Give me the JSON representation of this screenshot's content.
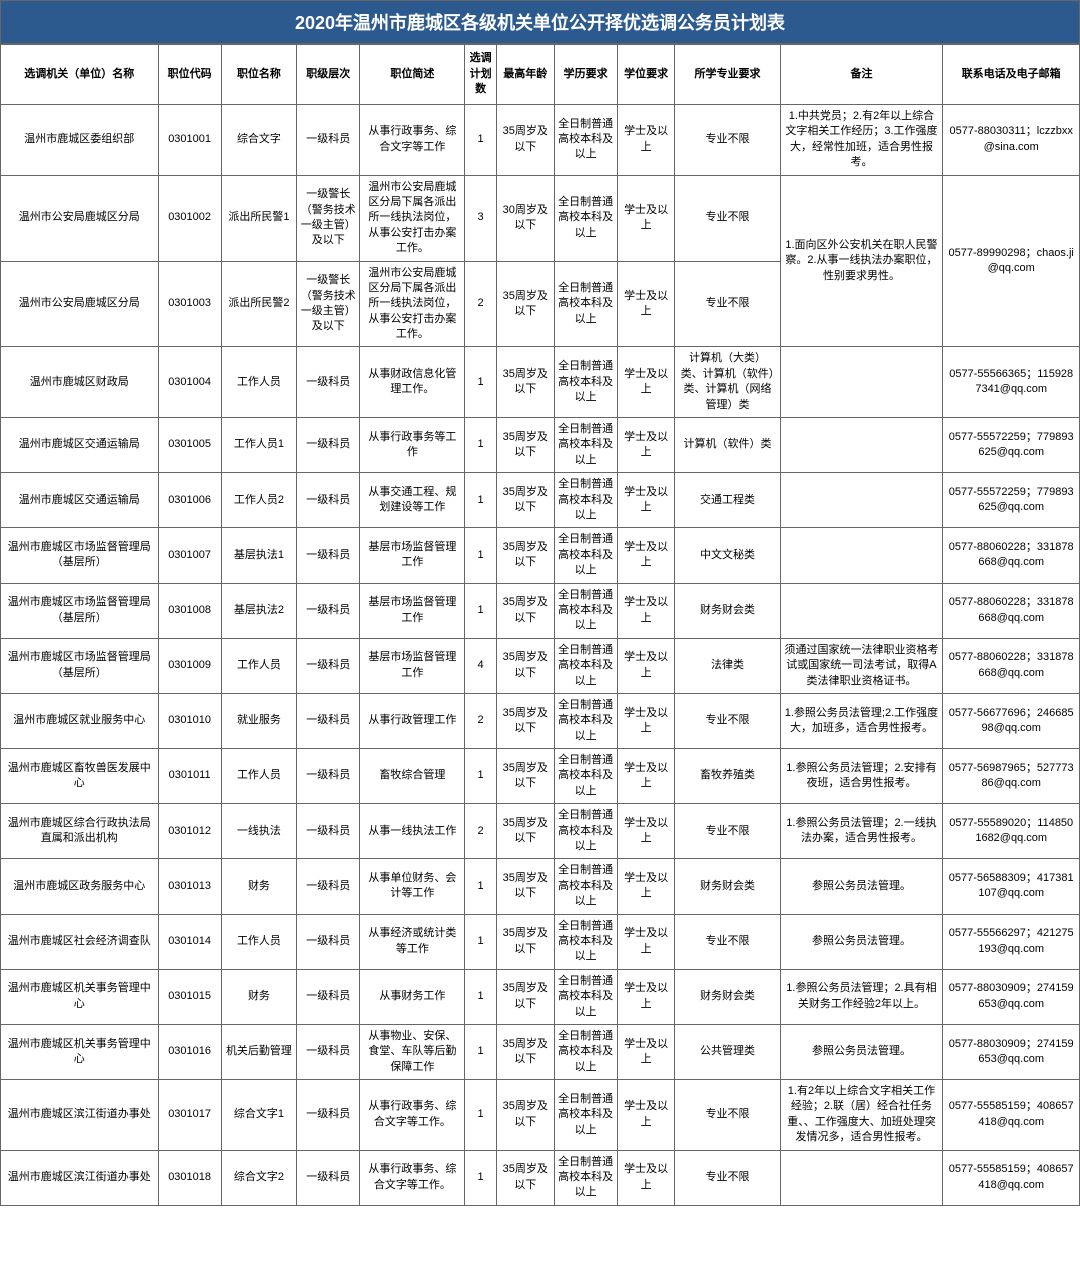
{
  "title": "2020年温州市鹿城区各级机关单位公开择优选调公务员计划表",
  "headers": {
    "unit": "选调机关（单位）名称",
    "code": "职位代码",
    "position": "职位名称",
    "level": "职级层次",
    "desc": "职位简述",
    "plan": "选调计划数",
    "age": "最高年龄",
    "edu": "学历要求",
    "degree": "学位要求",
    "major": "所学专业要求",
    "note": "备注",
    "contact": "联系电话及电子邮箱"
  },
  "merged_note_2_3": "1.面向区外公安机关在职人民警察。2.从事一线执法办案职位，性别要求男性。",
  "merged_contact_2_3": "0577-89990298；chaos.ji@qq.com",
  "rows": [
    {
      "unit": "温州市鹿城区委组织部",
      "code": "0301001",
      "position": "综合文字",
      "level": "一级科员",
      "desc": "从事行政事务、综合文字等工作",
      "plan": "1",
      "age": "35周岁及以下",
      "edu": "全日制普通高校本科及以上",
      "degree": "学士及以上",
      "major": "专业不限",
      "note": "1.中共党员；2.有2年以上综合文字相关工作经历；3.工作强度大，经常性加班，适合男性报考。",
      "contact": "0577-88030311；lczzbxx@sina.com"
    },
    {
      "unit": "温州市公安局鹿城区分局",
      "code": "0301002",
      "position": "派出所民警1",
      "level": "一级警长（警务技术一级主管）及以下",
      "desc": "温州市公安局鹿城区分局下属各派出所一线执法岗位，从事公安打击办案工作。",
      "plan": "3",
      "age": "30周岁及以下",
      "edu": "全日制普通高校本科及以上",
      "degree": "学士及以上",
      "major": "专业不限"
    },
    {
      "unit": "温州市公安局鹿城区分局",
      "code": "0301003",
      "position": "派出所民警2",
      "level": "一级警长（警务技术一级主管）及以下",
      "desc": "温州市公安局鹿城区分局下属各派出所一线执法岗位，从事公安打击办案工作。",
      "plan": "2",
      "age": "35周岁及以下",
      "edu": "全日制普通高校本科及以上",
      "degree": "学士及以上",
      "major": "专业不限"
    },
    {
      "unit": "温州市鹿城区财政局",
      "code": "0301004",
      "position": "工作人员",
      "level": "一级科员",
      "desc": "从事财政信息化管理工作。",
      "plan": "1",
      "age": "35周岁及以下",
      "edu": "全日制普通高校本科及以上",
      "degree": "学士及以上",
      "major": "计算机（大类）类、计算机（软件）类、计算机（网络管理）类",
      "note": "",
      "contact": "0577-55566365；1159287341@qq.com"
    },
    {
      "unit": "温州市鹿城区交通运输局",
      "code": "0301005",
      "position": "工作人员1",
      "level": "一级科员",
      "desc": "从事行政事务等工作",
      "plan": "1",
      "age": "35周岁及以下",
      "edu": "全日制普通高校本科及以上",
      "degree": "学士及以上",
      "major": "计算机（软件）类",
      "note": "",
      "contact": "0577-55572259；779893625@qq.com"
    },
    {
      "unit": "温州市鹿城区交通运输局",
      "code": "0301006",
      "position": "工作人员2",
      "level": "一级科员",
      "desc": "从事交通工程、规划建设等工作",
      "plan": "1",
      "age": "35周岁及以下",
      "edu": "全日制普通高校本科及以上",
      "degree": "学士及以上",
      "major": "交通工程类",
      "note": "",
      "contact": "0577-55572259；779893625@qq.com"
    },
    {
      "unit": "温州市鹿城区市场监督管理局（基层所）",
      "code": "0301007",
      "position": "基层执法1",
      "level": "一级科员",
      "desc": "基层市场监督管理工作",
      "plan": "1",
      "age": "35周岁及以下",
      "edu": "全日制普通高校本科及以上",
      "degree": "学士及以上",
      "major": "中文文秘类",
      "note": "",
      "contact": "0577-88060228；331878668@qq.com"
    },
    {
      "unit": "温州市鹿城区市场监督管理局（基层所）",
      "code": "0301008",
      "position": "基层执法2",
      "level": "一级科员",
      "desc": "基层市场监督管理工作",
      "plan": "1",
      "age": "35周岁及以下",
      "edu": "全日制普通高校本科及以上",
      "degree": "学士及以上",
      "major": "财务财会类",
      "note": "",
      "contact": "0577-88060228；331878668@qq.com"
    },
    {
      "unit": "温州市鹿城区市场监督管理局（基层所）",
      "code": "0301009",
      "position": "工作人员",
      "level": "一级科员",
      "desc": "基层市场监督管理工作",
      "plan": "4",
      "age": "35周岁及以下",
      "edu": "全日制普通高校本科及以上",
      "degree": "学士及以上",
      "major": "法律类",
      "note": "须通过国家统一法律职业资格考试或国家统一司法考试，取得A类法律职业资格证书。",
      "contact": "0577-88060228；331878668@qq.com"
    },
    {
      "unit": "温州市鹿城区就业服务中心",
      "code": "0301010",
      "position": "就业服务",
      "level": "一级科员",
      "desc": "从事行政管理工作",
      "plan": "2",
      "age": "35周岁及以下",
      "edu": "全日制普通高校本科及以上",
      "degree": "学士及以上",
      "major": "专业不限",
      "note": "1.参照公务员法管理;2.工作强度大，加班多，适合男性报考。",
      "contact": "0577-56677696；24668598@qq.com"
    },
    {
      "unit": "温州市鹿城区畜牧兽医发展中心",
      "code": "0301011",
      "position": "工作人员",
      "level": "一级科员",
      "desc": "畜牧综合管理",
      "plan": "1",
      "age": "35周岁及以下",
      "edu": "全日制普通高校本科及以上",
      "degree": "学士及以上",
      "major": "畜牧养殖类",
      "note": "1.参照公务员法管理；2.安排有夜班，适合男性报考。",
      "contact": "0577-56987965；52777386@qq.com"
    },
    {
      "unit": "温州市鹿城区综合行政执法局直属和派出机构",
      "code": "0301012",
      "position": "一线执法",
      "level": "一级科员",
      "desc": "从事一线执法工作",
      "plan": "2",
      "age": "35周岁及以下",
      "edu": "全日制普通高校本科及以上",
      "degree": "学士及以上",
      "major": "专业不限",
      "note": "1.参照公务员法管理；2.一线执法办案，适合男性报考。",
      "contact": "0577-55589020；1148501682@qq.com"
    },
    {
      "unit": "温州市鹿城区政务服务中心",
      "code": "0301013",
      "position": "财务",
      "level": "一级科员",
      "desc": "从事单位财务、会计等工作",
      "plan": "1",
      "age": "35周岁及以下",
      "edu": "全日制普通高校本科及以上",
      "degree": "学士及以上",
      "major": "财务财会类",
      "note": "参照公务员法管理。",
      "contact": "0577-56588309；417381107@qq.com"
    },
    {
      "unit": "温州市鹿城区社会经济调查队",
      "code": "0301014",
      "position": "工作人员",
      "level": "一级科员",
      "desc": "从事经济或统计类等工作",
      "plan": "1",
      "age": "35周岁及以下",
      "edu": "全日制普通高校本科及以上",
      "degree": "学士及以上",
      "major": "专业不限",
      "note": "参照公务员法管理。",
      "contact": "0577-55566297；421275193@qq.com"
    },
    {
      "unit": "温州市鹿城区机关事务管理中心",
      "code": "0301015",
      "position": "财务",
      "level": "一级科员",
      "desc": "从事财务工作",
      "plan": "1",
      "age": "35周岁及以下",
      "edu": "全日制普通高校本科及以上",
      "degree": "学士及以上",
      "major": "财务财会类",
      "note": "1.参照公务员法管理；2.具有相关财务工作经验2年以上。",
      "contact": "0577-88030909；274159653@qq.com"
    },
    {
      "unit": "温州市鹿城区机关事务管理中心",
      "code": "0301016",
      "position": "机关后勤管理",
      "level": "一级科员",
      "desc": "从事物业、安保、食堂、车队等后勤保障工作",
      "plan": "1",
      "age": "35周岁及以下",
      "edu": "全日制普通高校本科及以上",
      "degree": "学士及以上",
      "major": "公共管理类",
      "note": "参照公务员法管理。",
      "contact": "0577-88030909；274159653@qq.com"
    },
    {
      "unit": "温州市鹿城区滨江街道办事处",
      "code": "0301017",
      "position": "综合文字1",
      "level": "一级科员",
      "desc": "从事行政事务、综合文字等工作。",
      "plan": "1",
      "age": "35周岁及以下",
      "edu": "全日制普通高校本科及以上",
      "degree": "学士及以上",
      "major": "专业不限",
      "note": "1.有2年以上综合文字相关工作经验；2.联（居）经合社任务重、、工作强度大、加班处理突发情况多，适合男性报考。",
      "contact": "0577-55585159；408657418@qq.com"
    },
    {
      "unit": "温州市鹿城区滨江街道办事处",
      "code": "0301018",
      "position": "综合文字2",
      "level": "一级科员",
      "desc": "从事行政事务、综合文字等工作。",
      "plan": "1",
      "age": "35周岁及以下",
      "edu": "全日制普通高校本科及以上",
      "degree": "学士及以上",
      "major": "专业不限",
      "note": "",
      "contact": "0577-55585159；408657418@qq.com"
    }
  ]
}
